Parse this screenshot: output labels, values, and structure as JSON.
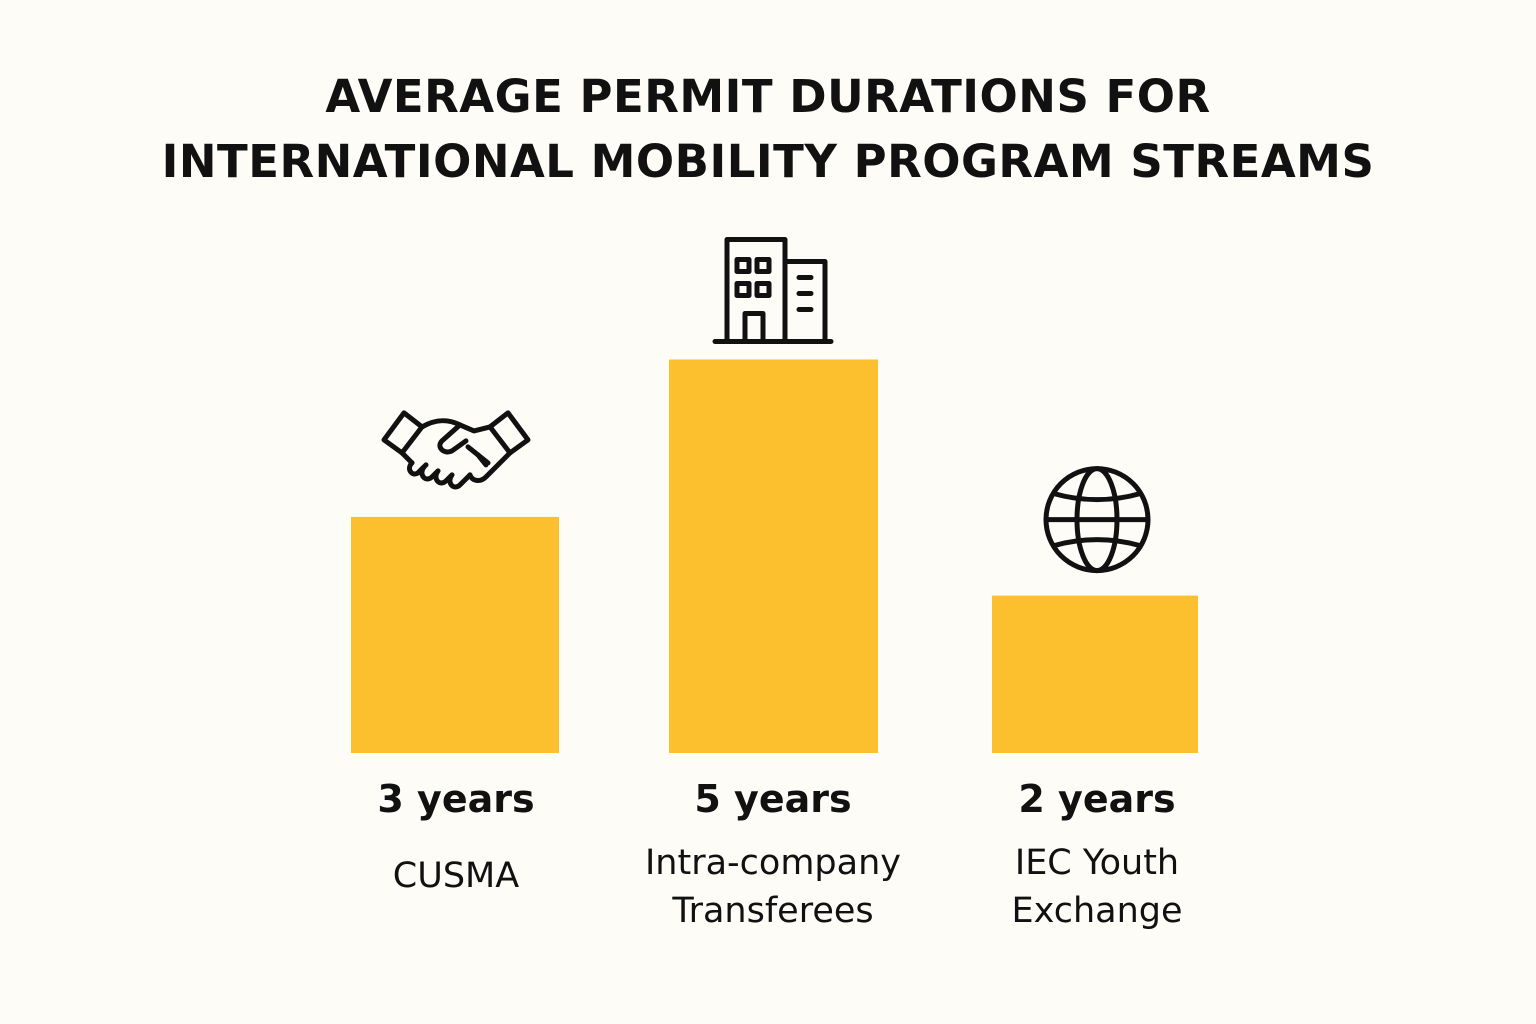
{
  "title_lines": [
    "AVERAGE PERMIT DURATIONS FOR",
    "INTERNATIONAL MOBILITY PROGRAM STREAMS"
  ],
  "colors": {
    "background": "#fdfcf7",
    "bar": "#fcbf2e",
    "text": "#111111"
  },
  "chart_data": {
    "type": "bar",
    "title": "AVERAGE PERMIT DURATIONS FOR INTERNATIONAL MOBILITY PROGRAM STREAMS",
    "categories": [
      "CUSMA",
      "Intra-company Transferees",
      "IEC Youth Exchange"
    ],
    "category_label_lines": [
      [
        "CUSMA"
      ],
      [
        "Intra-company",
        "Transferees"
      ],
      [
        "IEC Youth",
        "Exchange"
      ]
    ],
    "values": [
      3,
      5,
      2
    ],
    "value_labels": [
      "3 years",
      "5 years",
      "2 years"
    ],
    "icons": [
      "handshake-icon",
      "office-building-icon",
      "globe-icon"
    ],
    "unit": "years",
    "grid": false,
    "legend": "none"
  }
}
